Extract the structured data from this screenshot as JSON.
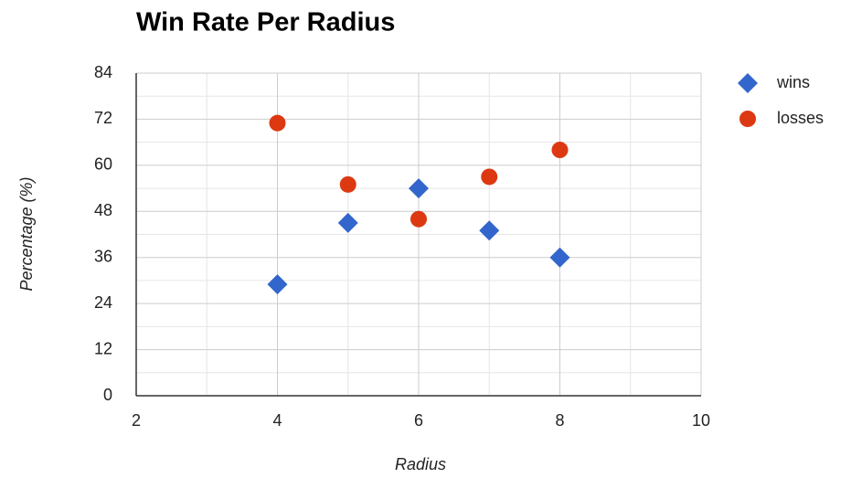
{
  "chart_data": {
    "type": "scatter",
    "title": "Win Rate Per Radius",
    "xlabel": "Radius",
    "ylabel": "Percentage (%)",
    "series": [
      {
        "name": "wins",
        "color": "#3366cc",
        "marker": "diamond",
        "x": [
          4,
          5,
          6,
          7,
          8
        ],
        "values": [
          29,
          45,
          54,
          43,
          36
        ]
      },
      {
        "name": "losses",
        "color": "#dc3912",
        "marker": "circle",
        "x": [
          4,
          5,
          6,
          7,
          8
        ],
        "values": [
          71,
          55,
          46,
          57,
          64
        ]
      }
    ],
    "xlim": [
      2,
      10
    ],
    "xticks": [
      2,
      4,
      6,
      8,
      10
    ],
    "minor_xticks": [
      3,
      5,
      7,
      9
    ],
    "ylim": [
      0,
      84
    ],
    "yticks": [
      0,
      12,
      24,
      36,
      48,
      60,
      72,
      84
    ],
    "minor_yticks": [
      6,
      18,
      30,
      42,
      54,
      66,
      78
    ],
    "grid": true,
    "legend": "right"
  }
}
